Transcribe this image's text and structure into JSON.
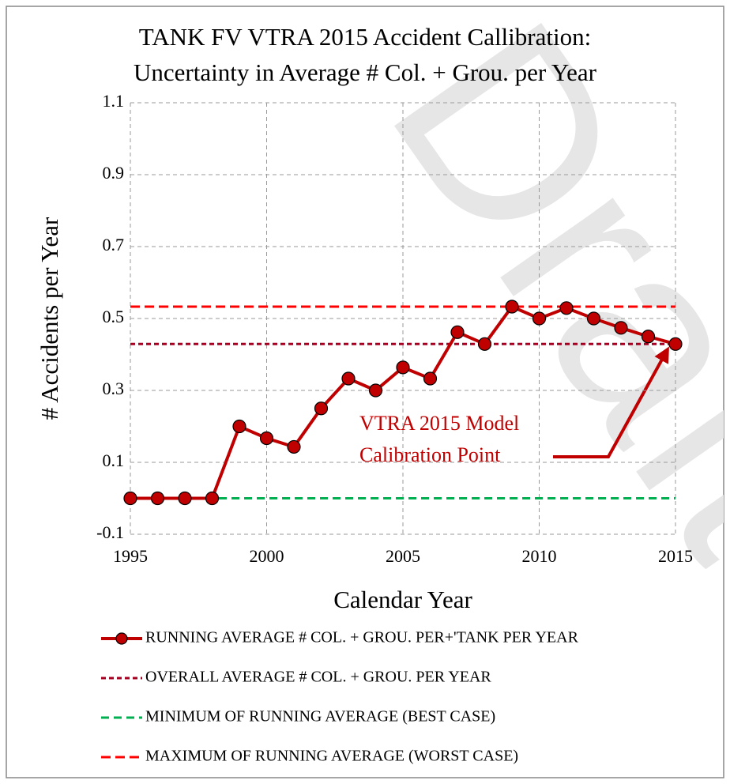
{
  "chart_data": {
    "type": "line",
    "title": [
      "TANK FV VTRA 2015 Accident Callibration:",
      "Uncertainty in Average # Col. + Grou. per Year"
    ],
    "xlabel": "Calendar Year",
    "ylabel": "# Accidents per Year",
    "x": [
      1995,
      1996,
      1997,
      1998,
      1999,
      2000,
      2001,
      2002,
      2003,
      2004,
      2005,
      2006,
      2007,
      2008,
      2009,
      2010,
      2011,
      2012,
      2013,
      2014,
      2015
    ],
    "series": [
      {
        "name": "RUNNING AVERAGE # COL. + GROU. PER+'TANK PER YEAR",
        "color": "#c00000",
        "markers": true,
        "dash": "none",
        "values": [
          0,
          0,
          0,
          0,
          0.2,
          0.167,
          0.143,
          0.25,
          0.333,
          0.3,
          0.364,
          0.333,
          0.462,
          0.429,
          0.533,
          0.5,
          0.529,
          0.5,
          0.474,
          0.45,
          0.429
        ]
      },
      {
        "name": "OVERALL AVERAGE # COL. + GROU. PER YEAR",
        "color": "#a50021",
        "markers": false,
        "dash": "6 4",
        "values": [
          0.429,
          0.429,
          0.429,
          0.429,
          0.429,
          0.429,
          0.429,
          0.429,
          0.429,
          0.429,
          0.429,
          0.429,
          0.429,
          0.429,
          0.429,
          0.429,
          0.429,
          0.429,
          0.429,
          0.429,
          0.429
        ]
      },
      {
        "name": "MINIMUM OF RUNNING AVERAGE (BEST CASE)",
        "color": "#00b050",
        "markers": false,
        "dash": "10 6",
        "values": [
          0,
          0,
          0,
          0,
          0,
          0,
          0,
          0,
          0,
          0,
          0,
          0,
          0,
          0,
          0,
          0,
          0,
          0,
          0,
          0,
          0
        ]
      },
      {
        "name": "MAXIMUM OF RUNNING AVERAGE (WORST CASE)",
        "color": "#ff0000",
        "markers": false,
        "dash": "12 6",
        "values": [
          0.533,
          0.533,
          0.533,
          0.533,
          0.533,
          0.533,
          0.533,
          0.533,
          0.533,
          0.533,
          0.533,
          0.533,
          0.533,
          0.533,
          0.533,
          0.533,
          0.533,
          0.533,
          0.533,
          0.533,
          0.533
        ]
      }
    ],
    "xlim": [
      1995,
      2015
    ],
    "xticks": [
      1995,
      2000,
      2005,
      2010,
      2015
    ],
    "ylim": [
      -0.1,
      1.1
    ],
    "yticks": [
      -0.1,
      0.1,
      0.3,
      0.5,
      0.7,
      0.9,
      1.1
    ],
    "grid": true,
    "legend": "bottom",
    "annotation": [
      "VTRA 2015 Model",
      "Calibration Point"
    ],
    "watermark": "Draft"
  }
}
